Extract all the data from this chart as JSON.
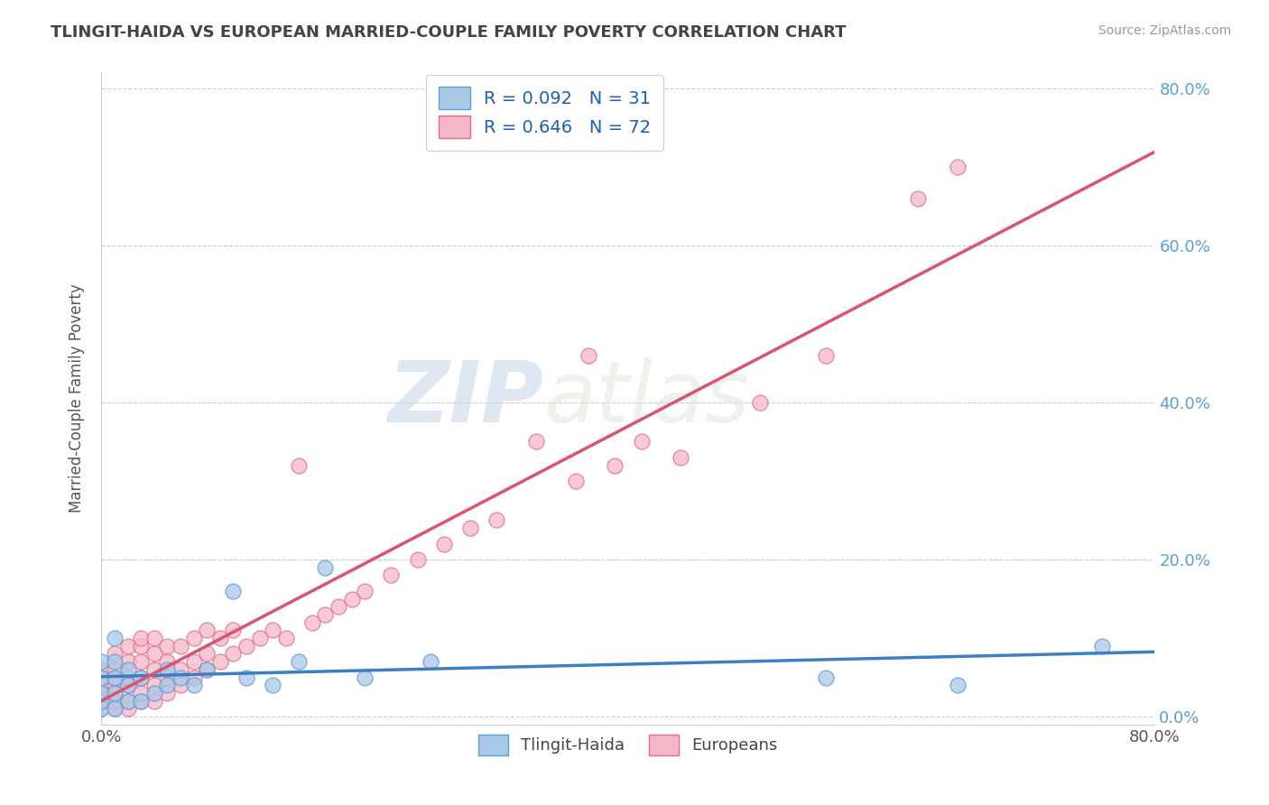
{
  "title": "TLINGIT-HAIDA VS EUROPEAN MARRIED-COUPLE FAMILY POVERTY CORRELATION CHART",
  "source": "Source: ZipAtlas.com",
  "ylabel": "Married-Couple Family Poverty",
  "xlim": [
    0.0,
    0.8
  ],
  "ylim": [
    -0.01,
    0.82
  ],
  "legend_label1": "Tlingit-Haida",
  "legend_label2": "Europeans",
  "R1": 0.092,
  "N1": 31,
  "R2": 0.646,
  "N2": 72,
  "color1": "#a8c8e8",
  "color2": "#f5b8c8",
  "edge_color1": "#5a9fd4",
  "edge_color2": "#e0708a",
  "line_color1": "#3a7fc1",
  "line_color2": "#d9546e",
  "watermark_zip": "ZIP",
  "watermark_atlas": "atlas",
  "background_color": "#ffffff",
  "grid_color": "#cccccc",
  "title_color": "#444444",
  "tick_color": "#5a9fd4",
  "ylabel_color": "#555555",
  "yticks": [
    0.0,
    0.2,
    0.4,
    0.6,
    0.8
  ],
  "xticks": [
    0.0,
    0.8
  ],
  "tlingit_x": [
    0.0,
    0.0,
    0.0,
    0.0,
    0.0,
    0.01,
    0.01,
    0.01,
    0.01,
    0.01,
    0.02,
    0.02,
    0.02,
    0.03,
    0.03,
    0.04,
    0.05,
    0.05,
    0.06,
    0.07,
    0.08,
    0.1,
    0.11,
    0.13,
    0.15,
    0.17,
    0.2,
    0.25,
    0.55,
    0.65,
    0.76
  ],
  "tlingit_y": [
    0.01,
    0.02,
    0.03,
    0.05,
    0.07,
    0.01,
    0.03,
    0.05,
    0.07,
    0.1,
    0.02,
    0.04,
    0.06,
    0.02,
    0.05,
    0.03,
    0.04,
    0.06,
    0.05,
    0.04,
    0.06,
    0.16,
    0.05,
    0.04,
    0.07,
    0.19,
    0.05,
    0.07,
    0.05,
    0.04,
    0.09
  ],
  "european_x": [
    0.0,
    0.0,
    0.0,
    0.0,
    0.0,
    0.0,
    0.01,
    0.01,
    0.01,
    0.01,
    0.01,
    0.01,
    0.01,
    0.02,
    0.02,
    0.02,
    0.02,
    0.02,
    0.02,
    0.03,
    0.03,
    0.03,
    0.03,
    0.03,
    0.03,
    0.04,
    0.04,
    0.04,
    0.04,
    0.04,
    0.05,
    0.05,
    0.05,
    0.05,
    0.06,
    0.06,
    0.06,
    0.07,
    0.07,
    0.07,
    0.08,
    0.08,
    0.08,
    0.09,
    0.09,
    0.1,
    0.1,
    0.11,
    0.12,
    0.13,
    0.14,
    0.15,
    0.16,
    0.17,
    0.18,
    0.19,
    0.2,
    0.22,
    0.24,
    0.26,
    0.28,
    0.3,
    0.33,
    0.36,
    0.37,
    0.39,
    0.41,
    0.44,
    0.5,
    0.55,
    0.62,
    0.65
  ],
  "european_y": [
    0.01,
    0.02,
    0.03,
    0.04,
    0.05,
    0.06,
    0.01,
    0.02,
    0.03,
    0.04,
    0.05,
    0.06,
    0.08,
    0.01,
    0.02,
    0.04,
    0.05,
    0.07,
    0.09,
    0.02,
    0.03,
    0.05,
    0.07,
    0.09,
    0.1,
    0.02,
    0.04,
    0.06,
    0.08,
    0.1,
    0.03,
    0.05,
    0.07,
    0.09,
    0.04,
    0.06,
    0.09,
    0.05,
    0.07,
    0.1,
    0.06,
    0.08,
    0.11,
    0.07,
    0.1,
    0.08,
    0.11,
    0.09,
    0.1,
    0.11,
    0.1,
    0.32,
    0.12,
    0.13,
    0.14,
    0.15,
    0.16,
    0.18,
    0.2,
    0.22,
    0.24,
    0.25,
    0.35,
    0.3,
    0.46,
    0.32,
    0.35,
    0.33,
    0.4,
    0.46,
    0.66,
    0.7
  ]
}
